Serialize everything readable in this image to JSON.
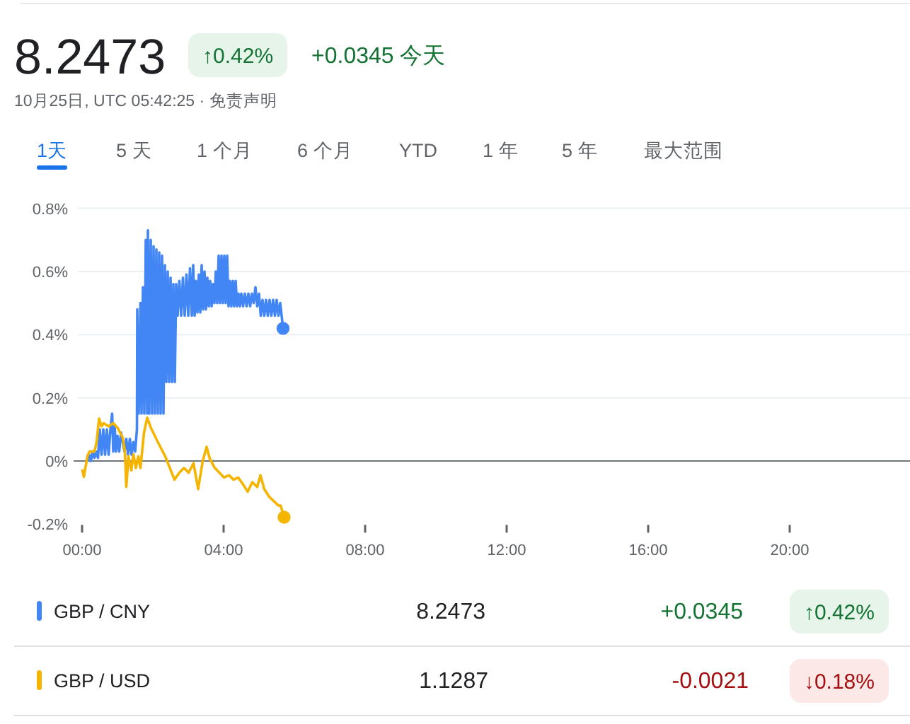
{
  "chart_data": {
    "type": "line",
    "title": "8.2473",
    "subtitle": "10月25日, UTC 05:42:25 · 免责声明",
    "annotations": [
      "↑0.42%",
      "+0.0345 今天",
      "1天",
      "5 天",
      "1 个月",
      "6 个月",
      "YTD",
      "1 年",
      "5 年",
      "最大范围",
      "8.2473",
      "+0.0345",
      "↑0.42%",
      "1.1287",
      "-0.0021",
      "↓0.18%"
    ],
    "xlim": [
      0,
      23.4
    ],
    "xticks": [
      {
        "value": 0,
        "label": "00:00"
      },
      {
        "value": 4,
        "label": "04:00"
      },
      {
        "value": 8,
        "label": "08:00"
      },
      {
        "value": 12,
        "label": "12:00"
      },
      {
        "value": 16,
        "label": "16:00"
      },
      {
        "value": 20,
        "label": "20:00"
      }
    ],
    "ylim": [
      -0.2,
      0.8
    ],
    "yticks": [
      {
        "value": -0.2,
        "label": "-0.2%"
      },
      {
        "value": 0,
        "label": "0%"
      },
      {
        "value": 0.2,
        "label": "0.2%"
      },
      {
        "value": 0.4,
        "label": "0.4%"
      },
      {
        "value": 0.6,
        "label": "0.6%"
      },
      {
        "value": 0.8,
        "label": "0.8%"
      }
    ],
    "grid": "y",
    "legend": "bottom",
    "ref_lines": [
      {
        "axis": "y",
        "value": 0,
        "color": "#70757a"
      }
    ],
    "series": [
      {
        "name": "GBP / CNY",
        "color": "#4285f4",
        "x": [
          0.15,
          0.2,
          0.25,
          0.3,
          0.35,
          0.4,
          0.45,
          0.5,
          0.55,
          0.6,
          0.65,
          0.7,
          0.75,
          0.8,
          0.85,
          0.88,
          0.92,
          0.96,
          1.0,
          1.05,
          1.1,
          1.2,
          1.25,
          1.3,
          1.35,
          1.4,
          1.45,
          1.5,
          1.55,
          1.56,
          1.6,
          1.65,
          1.68,
          1.72,
          1.76,
          1.8,
          1.84,
          1.86,
          1.9,
          1.94,
          1.98,
          2.02,
          2.06,
          2.1,
          2.14,
          2.18,
          2.22,
          2.26,
          2.3,
          2.34,
          2.38,
          2.42,
          2.46,
          2.5,
          2.54,
          2.58,
          2.62,
          2.66,
          2.7,
          2.75,
          2.8,
          2.85,
          2.9,
          2.95,
          3.0,
          3.05,
          3.1,
          3.14,
          3.18,
          3.22,
          3.26,
          3.3,
          3.34,
          3.38,
          3.42,
          3.46,
          3.5,
          3.54,
          3.58,
          3.62,
          3.66,
          3.7,
          3.74,
          3.78,
          3.82,
          3.86,
          3.9,
          3.94,
          3.98,
          4.02,
          4.06,
          4.1,
          4.14,
          4.18,
          4.22,
          4.26,
          4.3,
          4.34,
          4.38,
          4.42,
          4.46,
          4.5,
          4.55,
          4.6,
          4.65,
          4.7,
          4.75,
          4.8,
          4.85,
          4.9,
          4.95,
          5.0,
          5.05,
          5.1,
          5.15,
          5.2,
          5.25,
          5.3,
          5.35,
          5.4,
          5.45,
          5.5,
          5.55,
          5.6,
          5.64,
          5.68
        ],
        "values": [
          0.0,
          0.02,
          0.0,
          0.03,
          0.01,
          0.03,
          0.01,
          0.1,
          0.02,
          0.1,
          0.02,
          0.1,
          0.02,
          0.1,
          0.15,
          0.03,
          0.11,
          0.03,
          0.08,
          0.03,
          0.09,
          0.03,
          0.07,
          0.02,
          0.07,
          0.02,
          0.06,
          0.03,
          0.1,
          0.48,
          0.15,
          0.5,
          0.15,
          0.55,
          0.15,
          0.7,
          0.15,
          0.73,
          0.15,
          0.7,
          0.15,
          0.68,
          0.15,
          0.67,
          0.15,
          0.66,
          0.15,
          0.65,
          0.15,
          0.62,
          0.25,
          0.6,
          0.25,
          0.58,
          0.25,
          0.56,
          0.25,
          0.56,
          0.46,
          0.57,
          0.46,
          0.58,
          0.46,
          0.59,
          0.46,
          0.61,
          0.46,
          0.62,
          0.46,
          0.57,
          0.47,
          0.59,
          0.47,
          0.62,
          0.48,
          0.6,
          0.48,
          0.58,
          0.49,
          0.57,
          0.49,
          0.56,
          0.5,
          0.6,
          0.5,
          0.65,
          0.5,
          0.65,
          0.5,
          0.65,
          0.5,
          0.65,
          0.49,
          0.57,
          0.49,
          0.57,
          0.49,
          0.57,
          0.49,
          0.53,
          0.49,
          0.53,
          0.49,
          0.53,
          0.49,
          0.53,
          0.49,
          0.53,
          0.5,
          0.55,
          0.49,
          0.53,
          0.46,
          0.51,
          0.46,
          0.51,
          0.46,
          0.51,
          0.46,
          0.51,
          0.46,
          0.51,
          0.46,
          0.5,
          0.46,
          0.42
        ]
      },
      {
        "name": "GBP / USD",
        "color": "#f4b400",
        "x": [
          0.01,
          0.05,
          0.15,
          0.21,
          0.35,
          0.41,
          0.48,
          0.55,
          0.61,
          0.75,
          0.88,
          1.01,
          1.15,
          1.21,
          1.25,
          1.31,
          1.39,
          1.45,
          1.52,
          1.59,
          1.65,
          1.75,
          1.84,
          1.95,
          2.08,
          2.21,
          2.35,
          2.48,
          2.61,
          2.75,
          2.88,
          3.01,
          3.15,
          3.28,
          3.41,
          3.52,
          3.61,
          3.75,
          3.88,
          4.01,
          4.15,
          4.28,
          4.41,
          4.55,
          4.68,
          4.81,
          4.95,
          5.04,
          5.15,
          5.28,
          5.41,
          5.55,
          5.61,
          5.71
        ],
        "values": [
          -0.03,
          -0.05,
          0.015,
          0.03,
          0.03,
          0.06,
          0.134,
          0.11,
          0.12,
          0.11,
          0.12,
          0.104,
          0.074,
          0.03,
          -0.082,
          0.015,
          -0.03,
          0.022,
          -0.022,
          0.015,
          -0.022,
          0.089,
          0.137,
          0.104,
          0.074,
          0.045,
          0.015,
          -0.022,
          -0.059,
          -0.037,
          -0.022,
          -0.037,
          -0.007,
          -0.089,
          0,
          0.045,
          0.007,
          -0.022,
          -0.037,
          -0.052,
          -0.045,
          -0.059,
          -0.052,
          -0.074,
          -0.097,
          -0.067,
          -0.082,
          -0.045,
          -0.089,
          -0.112,
          -0.126,
          -0.141,
          -0.141,
          -0.178
        ]
      },
      {
        "type": "scatter",
        "color": "#4285f4",
        "x": [
          5.68
        ],
        "values": [
          0.42
        ]
      },
      {
        "type": "scatter",
        "color": "#f4b400",
        "x": [
          5.71
        ],
        "values": [
          -0.178
        ]
      }
    ]
  }
}
